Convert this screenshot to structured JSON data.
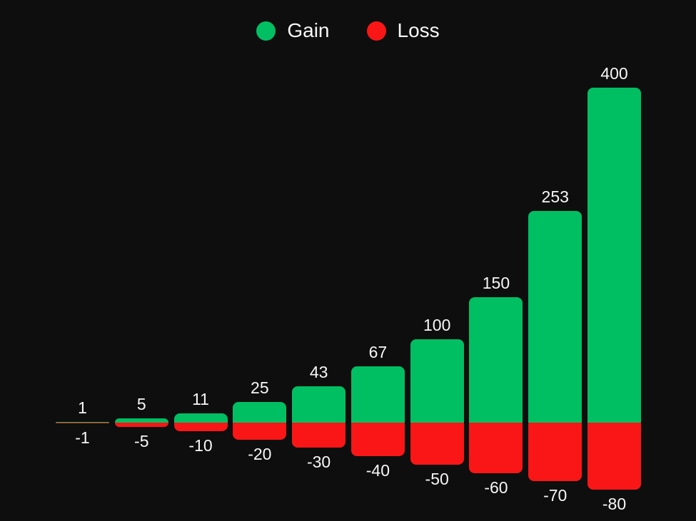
{
  "legend": {
    "items": [
      {
        "label": "Gain",
        "color": "#00bf63"
      },
      {
        "label": "Loss",
        "color": "#fa1616"
      }
    ]
  },
  "chart_data": {
    "type": "bar",
    "orientation": "vertical",
    "series": [
      {
        "name": "Gain",
        "color": "#00bf63",
        "values": [
          1,
          5,
          11,
          25,
          43,
          67,
          100,
          150,
          253,
          400
        ]
      },
      {
        "name": "Loss",
        "color": "#fa1616",
        "values": [
          -1,
          -5,
          -10,
          -20,
          -30,
          -40,
          -50,
          -60,
          -70,
          -80
        ]
      }
    ],
    "value_labels": true,
    "baseline": 0,
    "grid": false,
    "axes_visible": false,
    "legend_position": "top-center",
    "background_color": "#0e0e0e",
    "label_text_color": "#f7f7f7"
  }
}
